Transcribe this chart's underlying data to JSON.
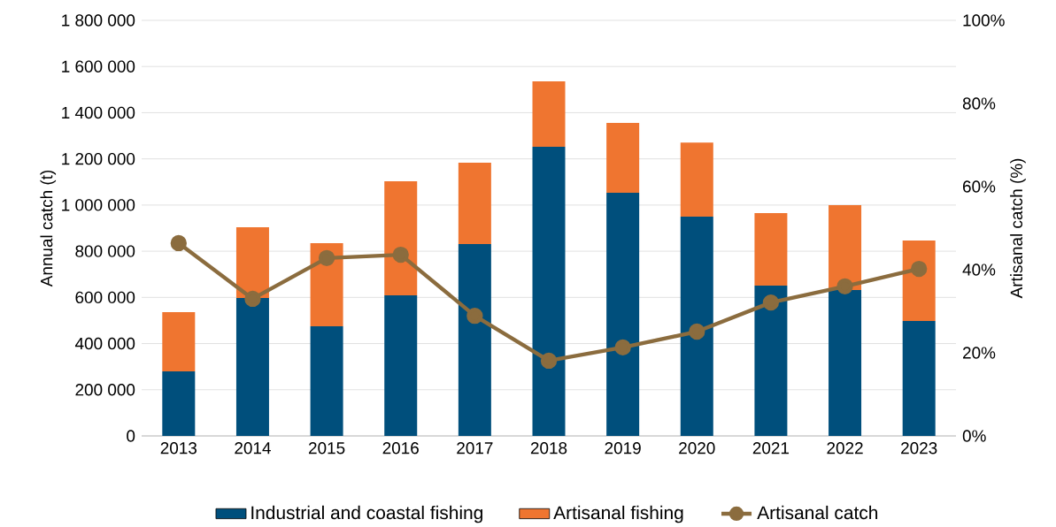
{
  "chart_data": {
    "type": "bar",
    "stacked": true,
    "categories": [
      "2013",
      "2014",
      "2015",
      "2016",
      "2017",
      "2018",
      "2019",
      "2020",
      "2021",
      "2022",
      "2023"
    ],
    "ylabel": "Annual catch (t)",
    "y2label": "Artisanal catch (%)",
    "ylim": [
      0,
      1800000
    ],
    "yticks": [
      {
        "value": 0,
        "label": "0"
      },
      {
        "value": 200000,
        "label": "200 000"
      },
      {
        "value": 400000,
        "label": "400 000"
      },
      {
        "value": 600000,
        "label": "600 000"
      },
      {
        "value": 800000,
        "label": "800 000"
      },
      {
        "value": 1000000,
        "label": "1 000 000"
      },
      {
        "value": 1200000,
        "label": "1 200 000"
      },
      {
        "value": 1400000,
        "label": "1 400 000"
      },
      {
        "value": 1600000,
        "label": "1 600 000"
      },
      {
        "value": 1800000,
        "label": "1 800 000"
      }
    ],
    "y2lim": [
      0,
      100
    ],
    "y2ticks": [
      {
        "value": 0,
        "label": "0%"
      },
      {
        "value": 20,
        "label": "20%"
      },
      {
        "value": 40,
        "label": "40%"
      },
      {
        "value": 60,
        "label": "60%"
      },
      {
        "value": 80,
        "label": "80%"
      },
      {
        "value": 100,
        "label": "100%"
      }
    ],
    "grid": "y",
    "legend": "bottom",
    "series": [
      {
        "name": "Industrial and coastal fishing",
        "color": "#004f7c",
        "values": [
          280000,
          597000,
          475000,
          609000,
          831000,
          1252000,
          1053000,
          950000,
          651000,
          632000,
          498000
        ]
      },
      {
        "name": "Artisanal fishing",
        "color": "#ef7530",
        "values": [
          256000,
          307000,
          360000,
          494000,
          352000,
          284000,
          303000,
          321000,
          314000,
          368000,
          348000
        ]
      },
      {
        "name": "Artisanal catch",
        "type": "line",
        "axis": "y2",
        "marker": "circle",
        "color": "#8b6c3e",
        "values": [
          46.4,
          33.0,
          42.8,
          43.6,
          28.9,
          18.1,
          21.3,
          25.1,
          32.1,
          36.0,
          40.2
        ]
      }
    ]
  }
}
